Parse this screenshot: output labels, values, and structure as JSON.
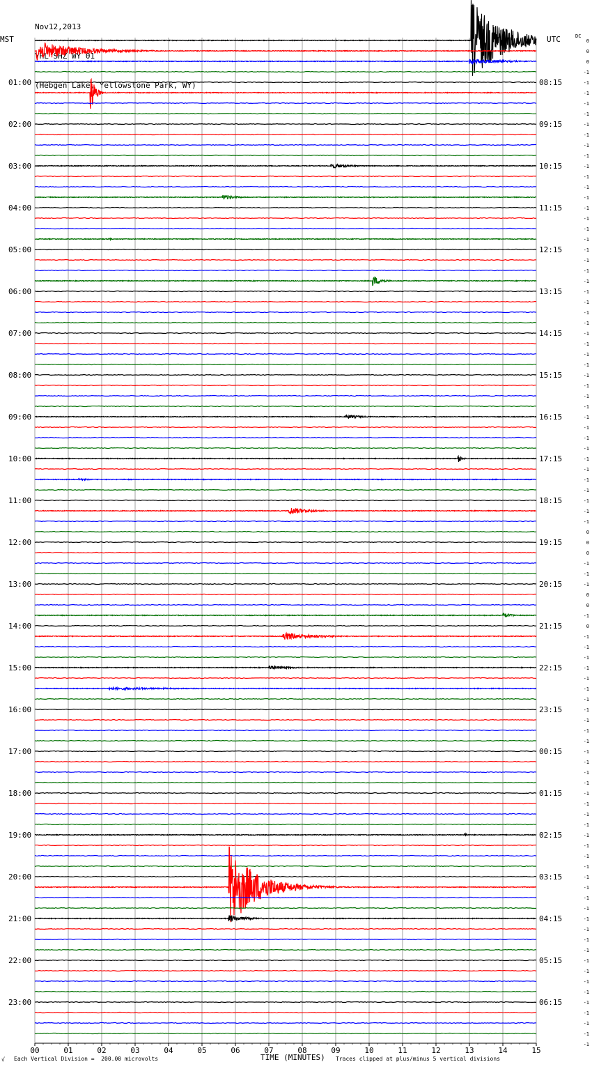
{
  "header": {
    "date": "Nov12,2013",
    "station": "YHL SHZ WY 01",
    "location": "(Hebgen Lake, Yellowstone Park, WY)"
  },
  "left_zone": "MST",
  "right_zone": "UTC",
  "dc_label": "DC",
  "footer": {
    "left_mark": "√",
    "scale": "Each Vertical Division =  200.00 microvolts",
    "xlabel": "TIME (MINUTES)",
    "clip_note": "Traces clipped at plus/minus 5 vertical divisions"
  },
  "chart_data": {
    "type": "line",
    "title": "",
    "xlabel": "TIME (MINUTES)",
    "xlim": [
      0,
      15
    ],
    "x_ticks": [
      "00",
      "01",
      "02",
      "03",
      "04",
      "05",
      "06",
      "07",
      "08",
      "09",
      "10",
      "11",
      "12",
      "13",
      "14",
      "15"
    ],
    "row_count": 96,
    "row_colors": [
      "#000000",
      "#ff0000",
      "#0000ff",
      "#007000"
    ],
    "left_hour_labels": [
      "01:00",
      "02:00",
      "03:00",
      "04:00",
      "05:00",
      "06:00",
      "07:00",
      "08:00",
      "09:00",
      "10:00",
      "11:00",
      "12:00",
      "13:00",
      "14:00",
      "15:00",
      "16:00",
      "17:00",
      "18:00",
      "19:00",
      "20:00",
      "21:00",
      "22:00",
      "23:00"
    ],
    "right_hour_labels": [
      "08:15",
      "09:15",
      "10:15",
      "11:15",
      "12:15",
      "13:15",
      "14:15",
      "15:15",
      "16:15",
      "17:15",
      "18:15",
      "19:15",
      "20:15",
      "21:15",
      "22:15",
      "23:15",
      "00:15",
      "01:15",
      "02:15",
      "03:15",
      "04:15",
      "05:15",
      "06:15"
    ],
    "dc_offsets": [
      "0",
      "0",
      "0",
      "-1",
      "-1",
      "-1",
      "-1",
      "-1",
      "-1",
      "-1",
      "-1",
      "-1",
      "-1",
      "-1",
      "-1",
      "-1",
      "-1",
      "-1",
      "-1",
      "-1",
      "-1",
      "-1",
      "-1",
      "-1",
      "-1",
      "-1",
      "-1",
      "-1",
      "-1",
      "-1",
      "-1",
      "-1",
      "-1",
      "-1",
      "-1",
      "-1",
      "-1",
      "-1",
      "-1",
      "-1",
      "-1",
      "-1",
      "-1",
      "-1",
      "-1",
      "-1",
      "-1",
      "0",
      "0",
      "0",
      "-1",
      "-1",
      "-1",
      "0",
      "0",
      "-1",
      "0",
      "-1",
      "-1",
      "-1",
      "-1",
      "-1",
      "-1",
      "-1",
      "-1",
      "-1",
      "-1",
      "-1",
      "-1",
      "-1",
      "-1",
      "-1",
      "-1",
      "-1",
      "-1",
      "-1",
      "-1",
      "-1",
      "-1",
      "-1",
      "-1",
      "-1",
      "-1",
      "-1",
      "-1",
      "-1",
      "-1",
      "-1",
      "-1",
      "-1",
      "-1",
      "-1",
      "-1",
      "-1",
      "-1",
      "-1",
      "-1"
    ],
    "events": [
      {
        "row": 0,
        "start": 13.05,
        "end": 15.0,
        "amp": 60,
        "decay": 0.9
      },
      {
        "row": 1,
        "start": 0.05,
        "end": 15.0,
        "amp": 14,
        "decay": 1.2
      },
      {
        "row": 2,
        "start": 13.0,
        "end": 15.0,
        "amp": 4,
        "decay": 1.0
      },
      {
        "row": 5,
        "start": 1.65,
        "end": 2.3,
        "amp": 38,
        "decay": 0.12
      },
      {
        "row": 12,
        "start": 8.85,
        "end": 10.7,
        "amp": 4,
        "decay": 0.5
      },
      {
        "row": 15,
        "start": 5.6,
        "end": 6.9,
        "amp": 4,
        "decay": 0.4
      },
      {
        "row": 19,
        "start": 2.2,
        "end": 2.4,
        "amp": 2,
        "decay": 0.1
      },
      {
        "row": 23,
        "start": 10.1,
        "end": 10.7,
        "amp": 8,
        "decay": 0.25
      },
      {
        "row": 36,
        "start": 9.3,
        "end": 10.5,
        "amp": 3,
        "decay": 0.5
      },
      {
        "row": 40,
        "start": 12.65,
        "end": 12.9,
        "amp": 8,
        "decay": 0.1
      },
      {
        "row": 42,
        "start": 1.3,
        "end": 1.9,
        "amp": 2,
        "decay": 0.3
      },
      {
        "row": 45,
        "start": 7.6,
        "end": 9.0,
        "amp": 6,
        "decay": 0.5
      },
      {
        "row": 55,
        "start": 14.0,
        "end": 14.5,
        "amp": 4,
        "decay": 0.25
      },
      {
        "row": 57,
        "start": 7.4,
        "end": 9.2,
        "amp": 6,
        "decay": 0.9
      },
      {
        "row": 60,
        "start": 7.0,
        "end": 9.0,
        "amp": 3,
        "decay": 0.6
      },
      {
        "row": 62,
        "start": 2.2,
        "end": 5.8,
        "amp": 2,
        "decay": 2.0
      },
      {
        "row": 76,
        "start": 12.85,
        "end": 13.0,
        "amp": 6,
        "decay": 0.05
      },
      {
        "row": 81,
        "start": 5.8,
        "end": 15.0,
        "amp": 60,
        "decay": 0.8
      },
      {
        "row": 84,
        "start": 5.8,
        "end": 7.2,
        "amp": 5,
        "decay": 0.5
      }
    ]
  }
}
